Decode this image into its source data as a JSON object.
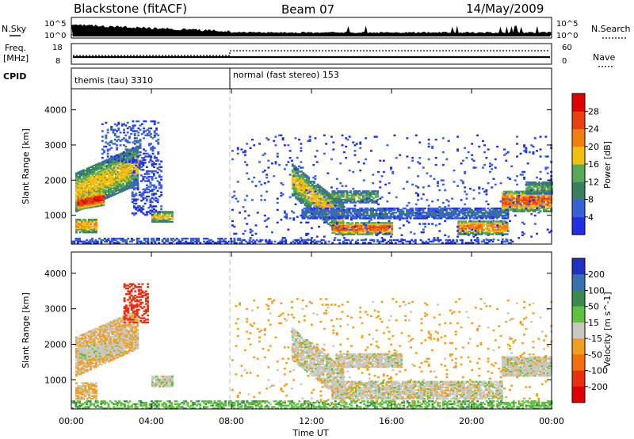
{
  "header": {
    "station": "Blackstone (fitACF)",
    "beam": "Beam 07",
    "date": "14/May/2009"
  },
  "side_labels": {
    "nsky": "N.Sky",
    "freq_line1": "Freq.",
    "freq_line2": "[MHz]",
    "cpid": "CPID",
    "nsearch": "N.Search",
    "nave": "Nave"
  },
  "strips": {
    "noise_left_ticks": [
      "10^5",
      "10^0"
    ],
    "noise_right_ticks": [
      "10^5",
      "10^0"
    ],
    "freq_left_ticks": [
      "18",
      "8"
    ],
    "nave_right_ticks": [
      "60",
      "0"
    ]
  },
  "cpid": {
    "segments": [
      {
        "label": "themis (tau) 3310",
        "start_hour": 0,
        "end_hour": 8
      },
      {
        "label": "normal (fast stereo) 153",
        "start_hour": 8,
        "end_hour": 24
      }
    ]
  },
  "power_colorbar": {
    "label": "Power [dB]",
    "ticks": [
      "4",
      "8",
      "12",
      "16",
      "20",
      "24",
      "28"
    ],
    "colors": [
      "#2030e0",
      "#3860d8",
      "#3a8060",
      "#58a858",
      "#f0c010",
      "#f08010",
      "#e84010",
      "#e00000"
    ]
  },
  "velocity_colorbar": {
    "label": "Velocity [m s^-1]",
    "ticks": [
      "200",
      "100",
      "50",
      "15",
      "-15",
      "-50",
      "-100",
      "-200"
    ],
    "colors": [
      "#2030c0",
      "#3a70b0",
      "#3a8a50",
      "#60c040",
      "#c8c8c0",
      "#f0a020",
      "#f07010",
      "#e83010",
      "#e00000"
    ]
  },
  "chart_data": {
    "type": "heatmap",
    "xlabel": "Time UT",
    "ylabel": "Slant Range [km]",
    "x_ticks": [
      "00:00",
      "04:00",
      "08:00",
      "12:00",
      "16:00",
      "20:00",
      "00:00"
    ],
    "x_range_hours": [
      0,
      24
    ],
    "y_range_km": [
      180,
      4600
    ],
    "y_ticks": [
      "1000",
      "2000",
      "3000",
      "4000"
    ],
    "y_tick_values": [
      1000,
      2000,
      3000,
      4000
    ],
    "program_change_hour": 8,
    "power_regions": [
      {
        "t0": 0.2,
        "t1": 3.3,
        "r0": 1100,
        "r1": 2200,
        "slope": 250,
        "level": 18,
        "density": 0.9
      },
      {
        "t0": 0.3,
        "t1": 1.6,
        "r0": 1150,
        "r1": 1550,
        "slope": 100,
        "level": 28,
        "density": 0.95
      },
      {
        "t0": 0.2,
        "t1": 1.2,
        "r0": 500,
        "r1": 900,
        "slope": 0,
        "level": 20,
        "density": 0.85
      },
      {
        "t0": 1.5,
        "t1": 4.3,
        "r0": 2500,
        "r1": 3700,
        "slope": 0,
        "level": 6,
        "density": 0.25
      },
      {
        "t0": 4.0,
        "t1": 5.0,
        "r0": 800,
        "r1": 1100,
        "slope": 0,
        "level": 18,
        "density": 0.85
      },
      {
        "t0": 3.0,
        "t1": 4.5,
        "r0": 1000,
        "r1": 2600,
        "slope": 0,
        "level": 5,
        "density": 0.3
      },
      {
        "t0": 0.0,
        "t1": 8.5,
        "r0": 200,
        "r1": 360,
        "slope": 0,
        "level": 6,
        "density": 0.55
      },
      {
        "t0": 11.0,
        "t1": 13.6,
        "r0": 1550,
        "r1": 2450,
        "slope": -450,
        "level": 18,
        "density": 0.85
      },
      {
        "t0": 13.0,
        "t1": 15.3,
        "r0": 1350,
        "r1": 1700,
        "slope": 0,
        "level": 14,
        "density": 0.7
      },
      {
        "t0": 11.5,
        "t1": 21.8,
        "r0": 900,
        "r1": 1200,
        "slope": 0,
        "level": 8,
        "density": 0.8
      },
      {
        "t0": 13.0,
        "t1": 16.0,
        "r0": 450,
        "r1": 800,
        "slope": 0,
        "level": 24,
        "density": 0.85
      },
      {
        "t0": 19.3,
        "t1": 21.8,
        "r0": 450,
        "r1": 850,
        "slope": 0,
        "level": 22,
        "density": 0.85
      },
      {
        "t0": 21.5,
        "t1": 24.0,
        "r0": 1100,
        "r1": 1700,
        "slope": 0,
        "level": 24,
        "density": 0.85
      },
      {
        "t0": 22.7,
        "t1": 24.0,
        "r0": 1600,
        "r1": 1950,
        "slope": 0,
        "level": 14,
        "density": 0.85
      },
      {
        "t0": 8.0,
        "t1": 24.0,
        "r0": 300,
        "r1": 3300,
        "slope": 0,
        "level": 5,
        "density": 0.04
      },
      {
        "t0": 8.5,
        "t1": 22.0,
        "r0": 200,
        "r1": 320,
        "slope": 0,
        "level": 5,
        "density": 0.45
      }
    ],
    "velocity_regions": [
      {
        "t0": 0.2,
        "t1": 3.3,
        "r0": 1100,
        "r1": 2200,
        "slope": 250,
        "vel": -15,
        "density": 0.85
      },
      {
        "t0": 0.3,
        "t1": 2.5,
        "r0": 1550,
        "r1": 1900,
        "slope": 100,
        "vel": 0,
        "density": 0.95
      },
      {
        "t0": 2.6,
        "t1": 3.8,
        "r0": 2600,
        "r1": 3700,
        "slope": 0,
        "vel": -150,
        "density": 0.4
      },
      {
        "t0": 0.2,
        "t1": 1.2,
        "r0": 450,
        "r1": 900,
        "slope": 0,
        "vel": -20,
        "density": 0.75
      },
      {
        "t0": 4.0,
        "t1": 5.0,
        "r0": 800,
        "r1": 1100,
        "slope": 0,
        "vel": 0,
        "density": 0.85
      },
      {
        "t0": 0.0,
        "t1": 24.0,
        "r0": 180,
        "r1": 420,
        "slope": 0,
        "vel": 40,
        "density": 0.5
      },
      {
        "t0": 11.0,
        "t1": 13.6,
        "r0": 1550,
        "r1": 2450,
        "slope": -450,
        "vel": 0,
        "density": 0.8
      },
      {
        "t0": 13.2,
        "t1": 16.5,
        "r0": 1350,
        "r1": 1750,
        "slope": 0,
        "vel": 0,
        "density": 0.85
      },
      {
        "t0": 13.0,
        "t1": 21.5,
        "r0": 450,
        "r1": 950,
        "slope": 0,
        "vel": 0,
        "density": 0.8
      },
      {
        "t0": 21.5,
        "t1": 24.0,
        "r0": 1100,
        "r1": 1650,
        "slope": 0,
        "vel": 0,
        "density": 0.9
      },
      {
        "t0": 8.0,
        "t1": 24.0,
        "r0": 300,
        "r1": 3300,
        "slope": 0,
        "vel": -30,
        "density": 0.04
      }
    ]
  }
}
